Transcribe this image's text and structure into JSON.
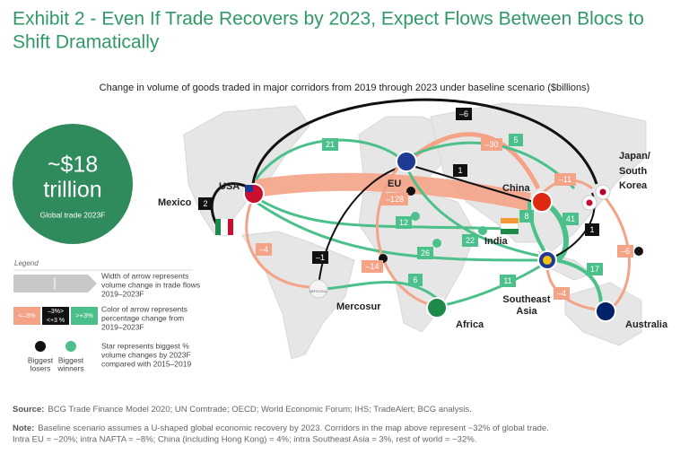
{
  "title_lines": [
    "Exhibit 2 - Even If Trade Recovers by 2023, Expect Flows Between Blocs to",
    "Shift Dramatically"
  ],
  "subtitle": "Change in volume of goods traded in major corridors from 2019 through 2023 under baseline scenario ($billions)",
  "global_trade": {
    "value_lines": [
      "~$18",
      "trillion"
    ],
    "label": "Global trade 2023F"
  },
  "regions": [
    "USA",
    "Mexico",
    "EU",
    "China",
    [
      "Japan/",
      "South",
      "Korea"
    ],
    "India",
    "Mercosur",
    "Africa",
    [
      "Southeast",
      "Asia"
    ],
    "Australia"
  ],
  "mercosur_logo": "MERCOSUL",
  "corridors": [
    {
      "label": "–6",
      "color": "#111111"
    },
    {
      "label": "21",
      "color": "#4cc08a"
    },
    {
      "label": "–30",
      "color": "#f4a387"
    },
    {
      "label": "5",
      "color": "#4cc08a"
    },
    {
      "label": "1",
      "color": "#111111"
    },
    {
      "label": "–11",
      "color": "#f4a387"
    },
    {
      "label": "2",
      "color": "#111111"
    },
    {
      "label": "–128",
      "color": "#f4a387"
    },
    {
      "label": "12",
      "color": "#4cc08a"
    },
    {
      "label": "8",
      "color": "#4cc08a"
    },
    {
      "label": "41",
      "color": "#4cc08a"
    },
    {
      "label": "1",
      "color": "#111111"
    },
    {
      "label": "–4",
      "color": "#f4a387"
    },
    {
      "label": "22",
      "color": "#4cc08a"
    },
    {
      "label": "26",
      "color": "#4cc08a"
    },
    {
      "label": "–6",
      "color": "#f4a387"
    },
    {
      "label": "–1",
      "color": "#111111"
    },
    {
      "label": "–14",
      "color": "#f4a387"
    },
    {
      "label": "17",
      "color": "#4cc08a"
    },
    {
      "label": "6",
      "color": "#4cc08a"
    },
    {
      "label": "11",
      "color": "#4cc08a"
    },
    {
      "label": "–4",
      "color": "#f4a387"
    }
  ],
  "legend": {
    "title": "Legend",
    "width": [
      "Width of arrow represents",
      "volume change in trade flows",
      "2019–2023F"
    ],
    "colors": [
      "<–3%",
      [
        "–3%>",
        "<+3 %"
      ],
      ">+3%"
    ],
    "color": [
      "Color of arrow represents",
      "percentage change from",
      "2019–2023F"
    ],
    "losers": [
      "Biggest",
      "losers"
    ],
    "winners": [
      "Biggest",
      "winners"
    ],
    "star": [
      "Star represents biggest %",
      "volume changes by 2023F",
      "compared with 2015–2019"
    ]
  },
  "source": {
    "label": "Source:",
    "text": "BCG Trade Finance Model 2020; UN Comtrade; OECD; World Economic Forum; IHS; TradeAlert; BCG analysis."
  },
  "note": {
    "label": "Note:",
    "lines": [
      "Baseline scenario assumes a U-shaped global economic recovery by 2023. Corridors in the map above represent ~32% of global trade.",
      "Intra EU = ~20%; intra NAFTA = ~8%; China (including Hong Kong) = 4%; intra Southeast Asia = 3%, rest of world = ~32%."
    ]
  }
}
